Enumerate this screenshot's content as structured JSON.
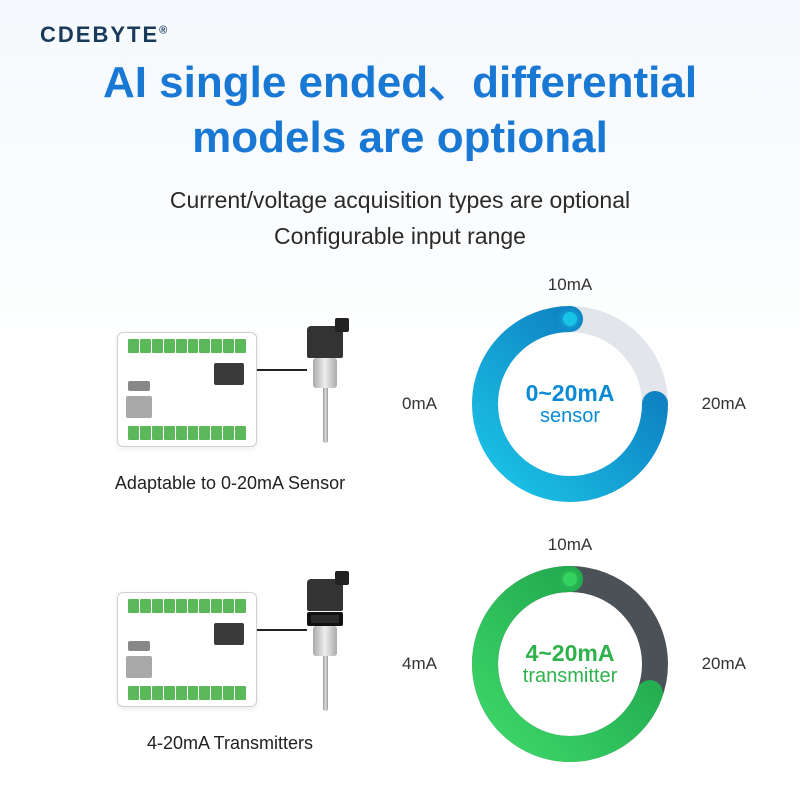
{
  "brand": "CDEBYTE",
  "headline_l1": "AI single ended、differential",
  "headline_l2": "models are optional",
  "subhead_l1": "Current/voltage acquisition types are optional",
  "subhead_l2": "Configurable input range",
  "row1": {
    "caption": "Adaptable to 0-20mA Sensor",
    "gauge": {
      "center_main": "0~20mA",
      "center_sub": "sensor",
      "color_main": "#0a8bd4",
      "color_sub": "#0a8bd4",
      "label_top": "10mA",
      "label_left": "0mA",
      "label_right": "20mA",
      "track_color": "#e2e6ea",
      "arc_start_deg": 180,
      "arc_end_deg": 90,
      "arc_gradient_from": "#1bc6e8",
      "arc_gradient_to": "#0b6fb8",
      "dot_color": "#18c3e6",
      "stroke_width": 26
    }
  },
  "row2": {
    "caption": "4-20mA Transmitters",
    "gauge": {
      "center_main": "4~20mA",
      "center_sub": "transmitter",
      "color_main": "#2fb24c",
      "color_sub": "#2fb24c",
      "label_top": "10mA",
      "label_left": "4mA",
      "label_right": "20mA",
      "track_color": "#4a5258",
      "arc_start_deg": 200,
      "arc_end_deg": 90,
      "arc_gradient_from": "#3ed96a",
      "arc_gradient_to": "#1a9c46",
      "dot_color": "#34d25e",
      "stroke_width": 26
    }
  }
}
